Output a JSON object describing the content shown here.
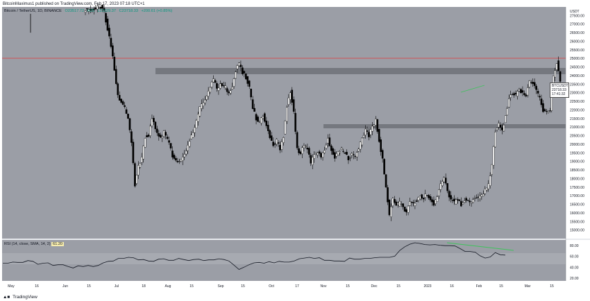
{
  "header": {
    "published": "BitcoinMaximus1 published on TradingView.com, Feb 17, 2023 07:18 UTC+1"
  },
  "symbol_line": {
    "name": "Bitcoin / TetherUS, 1D, BINANCE",
    "open": "O23517.72",
    "high": "H25 ",
    "low": "L23329.37",
    "close": "C23718.33",
    "change": "+200.61 (+0.85%)"
  },
  "rsi_legend": {
    "label": "RSI (14, close, SMA, 14, 2)",
    "value": "61.20"
  },
  "price_label": {
    "symbol": "BTCUSDT",
    "price": "23718.33",
    "countdown": "17:41:32"
  },
  "footer": {
    "brand": "TradingView"
  },
  "colors": {
    "plot_bg": "#9b9ea6",
    "resistance_line": "#e03a3a",
    "zone": "#6e7178",
    "bull_candle": "#ffffff",
    "bear_candle": "#000000",
    "rsi_line": "#131722",
    "rsi_trend": "#3ec35b"
  },
  "chart_data": [
    {
      "type": "candlestick",
      "title": "",
      "price_axis_unit": "USDT",
      "ylim": [
        14500,
        28000
      ],
      "y_ticks": [
        15000,
        15500,
        16000,
        16500,
        17000,
        17500,
        18000,
        18500,
        19000,
        19500,
        20000,
        20500,
        21000,
        21500,
        22000,
        22500,
        23000,
        23500,
        24000,
        24500,
        25000,
        25500,
        26000,
        26500,
        27000,
        27500
      ],
      "y_tick_labels": [
        "15000.00",
        "15500.00",
        "16000.00",
        "16500.00",
        "17000.00",
        "17500.00",
        "18000.00",
        "18500.00",
        "19000.00",
        "19500.00",
        "20000.00",
        "20500.00",
        "21000.00",
        "21500.00",
        "22000.00",
        "22500.00",
        "23000.00",
        "23500.00",
        "24000.00",
        "24500.00",
        "25000.00",
        "25500.00",
        "26000.00",
        "26500.00",
        "27000.00",
        "27500.00"
      ],
      "x_ticks": [
        "May",
        "16",
        "Jun",
        "15",
        "Jul",
        "18",
        "Aug",
        "15",
        "Sep",
        "15",
        "Oct",
        "17",
        "Nov",
        "15",
        "Dec",
        "15",
        "2023",
        "16",
        "Feb",
        "15",
        "Mar",
        "15"
      ],
      "resistance_line": 25250,
      "zones": [
        {
          "from": 24400,
          "to": 24700
        },
        {
          "from": 21200,
          "to": 21400
        }
      ],
      "last_price": 23718.33,
      "price_path": [
        [
          0,
          27800
        ],
        [
          10,
          28000
        ],
        [
          12,
          27700
        ],
        [
          15,
          26200
        ],
        [
          17,
          25100
        ],
        [
          20,
          22800
        ],
        [
          24,
          22100
        ],
        [
          26,
          21500
        ],
        [
          28,
          20200
        ],
        [
          30,
          17600
        ],
        [
          32,
          18700
        ],
        [
          34,
          19200
        ],
        [
          36,
          20400
        ],
        [
          38,
          20500
        ],
        [
          40,
          21500
        ],
        [
          42,
          20900
        ],
        [
          45,
          20300
        ],
        [
          47,
          20700
        ],
        [
          50,
          20100
        ],
        [
          52,
          19300
        ],
        [
          55,
          18900
        ],
        [
          57,
          19100
        ],
        [
          60,
          19700
        ],
        [
          63,
          20500
        ],
        [
          66,
          21300
        ],
        [
          68,
          22100
        ],
        [
          71,
          22600
        ],
        [
          74,
          23400
        ],
        [
          76,
          23800
        ],
        [
          78,
          23200
        ],
        [
          80,
          23500
        ],
        [
          83,
          23300
        ],
        [
          85,
          23000
        ],
        [
          87,
          23400
        ],
        [
          89,
          24300
        ],
        [
          91,
          24700
        ],
        [
          93,
          24200
        ],
        [
          95,
          23900
        ],
        [
          97,
          23300
        ],
        [
          99,
          22100
        ],
        [
          101,
          21500
        ],
        [
          103,
          21300
        ],
        [
          105,
          21700
        ],
        [
          107,
          21100
        ],
        [
          109,
          20400
        ],
        [
          111,
          20000
        ],
        [
          113,
          20200
        ],
        [
          115,
          19700
        ],
        [
          117,
          20500
        ],
        [
          119,
          22200
        ],
        [
          121,
          23100
        ],
        [
          123,
          21900
        ],
        [
          125,
          19700
        ],
        [
          127,
          19500
        ],
        [
          129,
          19900
        ],
        [
          131,
          19700
        ],
        [
          133,
          18900
        ],
        [
          135,
          19400
        ],
        [
          137,
          19500
        ],
        [
          139,
          19300
        ],
        [
          141,
          19700
        ],
        [
          143,
          20300
        ],
        [
          145,
          19700
        ],
        [
          147,
          19200
        ],
        [
          149,
          19500
        ],
        [
          151,
          19700
        ],
        [
          153,
          19500
        ],
        [
          155,
          19100
        ],
        [
          157,
          19400
        ],
        [
          159,
          19300
        ],
        [
          161,
          19700
        ],
        [
          163,
          20400
        ],
        [
          165,
          20800
        ],
        [
          167,
          20500
        ],
        [
          169,
          21000
        ],
        [
          171,
          21400
        ],
        [
          173,
          20200
        ],
        [
          175,
          19100
        ],
        [
          177,
          17500
        ],
        [
          179,
          15800
        ],
        [
          181,
          16800
        ],
        [
          183,
          16400
        ],
        [
          185,
          16600
        ],
        [
          187,
          16300
        ],
        [
          189,
          16100
        ],
        [
          191,
          16700
        ],
        [
          193,
          16500
        ],
        [
          195,
          16700
        ],
        [
          197,
          17000
        ],
        [
          199,
          16900
        ],
        [
          201,
          17100
        ],
        [
          203,
          16800
        ],
        [
          205,
          16500
        ],
        [
          207,
          16900
        ],
        [
          209,
          17600
        ],
        [
          211,
          18100
        ],
        [
          213,
          17200
        ],
        [
          215,
          16800
        ],
        [
          217,
          16600
        ],
        [
          219,
          16800
        ],
        [
          221,
          16500
        ],
        [
          223,
          16800
        ],
        [
          225,
          16700
        ],
        [
          227,
          16600
        ],
        [
          229,
          16900
        ],
        [
          231,
          16800
        ],
        [
          233,
          17000
        ],
        [
          235,
          17300
        ],
        [
          237,
          17600
        ],
        [
          239,
          18800
        ],
        [
          241,
          20800
        ],
        [
          243,
          21200
        ],
        [
          245,
          20800
        ],
        [
          247,
          21600
        ],
        [
          249,
          22700
        ],
        [
          251,
          23000
        ],
        [
          253,
          22900
        ],
        [
          255,
          23100
        ],
        [
          257,
          23000
        ],
        [
          259,
          22900
        ],
        [
          261,
          23700
        ],
        [
          263,
          23500
        ],
        [
          265,
          23100
        ],
        [
          267,
          22700
        ],
        [
          269,
          22000
        ],
        [
          271,
          21900
        ],
        [
          273,
          22000
        ],
        [
          275,
          23900
        ],
        [
          277,
          24800
        ],
        [
          279,
          23700
        ]
      ],
      "x_range": [
        0,
        330
      ]
    },
    {
      "type": "line",
      "title": "",
      "series": [
        {
          "name": "RSI (14, close, SMA, 14, 2)",
          "values": [
            47.4,
            47.4,
            49.5,
            48.9,
            48.9,
            52.2,
            50.9,
            45.4,
            47.4,
            48.1,
            43.3,
            44.6,
            44.6,
            41.3,
            38.7,
            42.7,
            41.3,
            43.3,
            41.3,
            43.3,
            48.1,
            50.9,
            51.5,
            56.2,
            56.2,
            58.2,
            57.5,
            53.5,
            54.2,
            51.5,
            50.9,
            54.8,
            55.5,
            52.8,
            52.8,
            56.2,
            54.2,
            52.2,
            54.2,
            54.8,
            52.2,
            53.5,
            53.5,
            55.5,
            54.2,
            51.5,
            44.0,
            36.0,
            40.0,
            44.6,
            48.1,
            48.9,
            47.4,
            50.2,
            48.1,
            50.9,
            49.5,
            49.5,
            51.5,
            55.5,
            56.8,
            58.2,
            56.2,
            57.5,
            52.8,
            52.8,
            51.5,
            51.5,
            50.9,
            56.8,
            54.8,
            54.8,
            56.2,
            56.2,
            57.5,
            58.2,
            58.2,
            58.2,
            60.2,
            70.9,
            77.6,
            82.3,
            84.9,
            83.6,
            81.6,
            81.0,
            81.6,
            80.3,
            79.6,
            79.6,
            78.9,
            74.3,
            68.9,
            68.9,
            67.6,
            60.9,
            56.8,
            58.9,
            66.9,
            62.9,
            62.3
          ]
        }
      ],
      "ylim": [
        15,
        90
      ],
      "y_ticks": [
        20,
        40,
        60,
        80
      ],
      "y_tick_labels": [
        "20.00",
        "40.00",
        "60.00",
        "80.00"
      ],
      "last_value": 61.2,
      "trendline": [
        [
          84.9,
          84.9
        ],
        [
          78.2,
          78.2
        ]
      ]
    }
  ]
}
